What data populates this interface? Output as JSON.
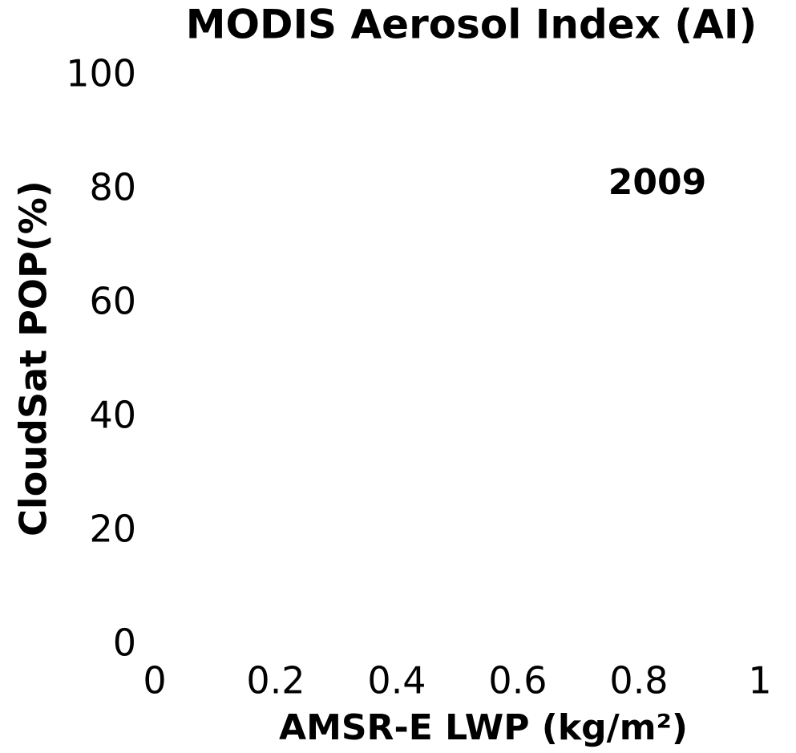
{
  "chart_data": {
    "type": "scatter",
    "title": "MODIS Aerosol Index (AI)",
    "xlabel": "AMSR-E LWP (kg/m²)",
    "ylabel": "CloudSat POP(%)",
    "annotation": "2009",
    "xlim": [
      0,
      1
    ],
    "xticks": [
      0,
      0.2,
      0.4,
      0.6,
      0.8,
      1
    ],
    "ylim": [
      0,
      100
    ],
    "yticks": [
      0,
      20,
      40,
      60,
      80,
      100
    ]
  }
}
